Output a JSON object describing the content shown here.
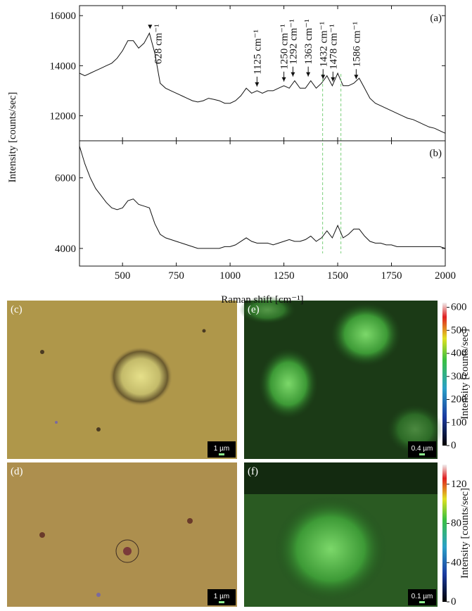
{
  "chart_data": [
    {
      "type": "line",
      "panel_label": "(a)",
      "ylabel": "Intensity [counts/sec]",
      "x": [
        300,
        325,
        350,
        375,
        400,
        425,
        450,
        475,
        500,
        525,
        550,
        575,
        600,
        625,
        650,
        675,
        700,
        725,
        750,
        775,
        800,
        825,
        850,
        875,
        900,
        925,
        950,
        975,
        1000,
        1025,
        1050,
        1075,
        1100,
        1125,
        1150,
        1175,
        1200,
        1225,
        1250,
        1275,
        1300,
        1325,
        1350,
        1375,
        1400,
        1425,
        1450,
        1475,
        1500,
        1525,
        1550,
        1575,
        1600,
        1625,
        1650,
        1675,
        1700,
        1725,
        1750,
        1775,
        1800,
        1825,
        1850,
        1875,
        1900,
        1925,
        1950,
        1975,
        2000
      ],
      "series": [
        {
          "color": "#111111",
          "values": [
            13700,
            13600,
            13700,
            13800,
            13900,
            14000,
            14100,
            14300,
            14600,
            15000,
            15000,
            14700,
            14900,
            15300,
            14500,
            13300,
            13100,
            13000,
            12900,
            12800,
            12700,
            12600,
            12550,
            12600,
            12700,
            12650,
            12600,
            12500,
            12500,
            12600,
            12800,
            13100,
            12900,
            13000,
            12900,
            13000,
            13000,
            13100,
            13200,
            13100,
            13400,
            13100,
            13100,
            13400,
            13100,
            13300,
            13600,
            13200,
            13700,
            13200,
            13200,
            13300,
            13500,
            13100,
            12700,
            12500,
            12400,
            12300,
            12200,
            12100,
            12000,
            11900,
            11850,
            11750,
            11650,
            11550,
            11500,
            11400,
            11300
          ]
        }
      ],
      "xlim": [
        300,
        2000
      ],
      "xticks": [
        500,
        750,
        1000,
        1250,
        1500,
        1750,
        2000
      ],
      "ylim": [
        11000,
        16400
      ],
      "yticks": [
        12000,
        14000,
        16000
      ],
      "annotations": [
        {
          "x": 628,
          "text": "628 cm⁻¹"
        },
        {
          "x": 1125,
          "text": "1125 cm⁻¹"
        },
        {
          "x": 1250,
          "text": "1250 cm⁻¹"
        },
        {
          "x": 1292,
          "text": "1292 cm⁻¹"
        },
        {
          "x": 1363,
          "text": "1363 cm⁻¹"
        },
        {
          "x": 1432,
          "text": "1432 cm⁻¹"
        },
        {
          "x": 1478,
          "text": "1478 cm⁻¹"
        },
        {
          "x": 1586,
          "text": "1586 cm⁻¹"
        }
      ],
      "vlines": [
        1430,
        1515
      ]
    },
    {
      "type": "line",
      "panel_label": "(b)",
      "xlabel": "Raman shift [cm⁻¹]",
      "x": [
        300,
        325,
        350,
        375,
        400,
        425,
        450,
        475,
        500,
        525,
        550,
        575,
        600,
        625,
        650,
        675,
        700,
        725,
        750,
        775,
        800,
        825,
        850,
        875,
        900,
        925,
        950,
        975,
        1000,
        1025,
        1050,
        1075,
        1100,
        1125,
        1150,
        1175,
        1200,
        1225,
        1250,
        1275,
        1300,
        1325,
        1350,
        1375,
        1400,
        1425,
        1450,
        1475,
        1500,
        1525,
        1550,
        1575,
        1600,
        1625,
        1650,
        1675,
        1700,
        1725,
        1750,
        1775,
        1800,
        1825,
        1850,
        1875,
        1900,
        1925,
        1950,
        1975,
        2000
      ],
      "series": [
        {
          "color": "#111111",
          "values": [
            6900,
            6400,
            6000,
            5700,
            5500,
            5300,
            5150,
            5100,
            5150,
            5350,
            5400,
            5250,
            5200,
            5150,
            4700,
            4400,
            4300,
            4250,
            4200,
            4150,
            4100,
            4050,
            4000,
            4000,
            4000,
            4000,
            4000,
            4050,
            4050,
            4100,
            4200,
            4300,
            4200,
            4150,
            4150,
            4150,
            4100,
            4150,
            4200,
            4250,
            4200,
            4200,
            4250,
            4350,
            4200,
            4300,
            4500,
            4300,
            4650,
            4300,
            4400,
            4550,
            4550,
            4350,
            4200,
            4150,
            4150,
            4100,
            4100,
            4050,
            4050,
            4050,
            4050,
            4050,
            4050,
            4050,
            4050,
            4050,
            4000
          ]
        }
      ],
      "xlim": [
        300,
        2000
      ],
      "xticks": [
        500,
        750,
        1000,
        1250,
        1500,
        1750,
        2000
      ],
      "ylim": [
        3500,
        7050
      ],
      "yticks": [
        4000,
        6000
      ]
    }
  ],
  "panels": [
    {
      "label": "(c)",
      "scale_bar": "1 µm"
    },
    {
      "label": "(e)",
      "scale_bar": "0.4 µm"
    },
    {
      "label": "(d)",
      "scale_bar": "1 µm"
    },
    {
      "label": "(f)",
      "scale_bar": "0.1 µm"
    }
  ],
  "colorbars": [
    {
      "label": "Intensity [counts/sec]",
      "ylim": [
        0,
        620
      ],
      "yticks": [
        0,
        100,
        200,
        300,
        400,
        500,
        600
      ]
    },
    {
      "label": "Intensity [counts/sec]",
      "ylim": [
        0,
        140
      ],
      "yticks": [
        0,
        40,
        80,
        120
      ]
    }
  ]
}
